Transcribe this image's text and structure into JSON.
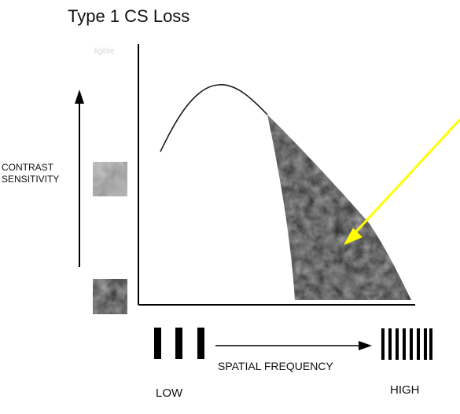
{
  "title": "Type 1 CS Loss",
  "y_axis_label": "CONTRAST\nSENSITIVITY",
  "x_axis_label": "SPATIAL FREQUENCY",
  "low_label": "LOW",
  "high_label": "HIGH",
  "faint_text": "ligible",
  "colors": {
    "curve": "#1a1a1a",
    "shaded_loss": "#222222",
    "arrow": "#ffff00",
    "axis": "#000000"
  },
  "icons": [
    "up-arrow-icon",
    "right-arrow-icon",
    "low-frequency-grating-icon",
    "high-frequency-grating-icon",
    "high-contrast-patch-icon",
    "low-contrast-patch-icon"
  ]
}
